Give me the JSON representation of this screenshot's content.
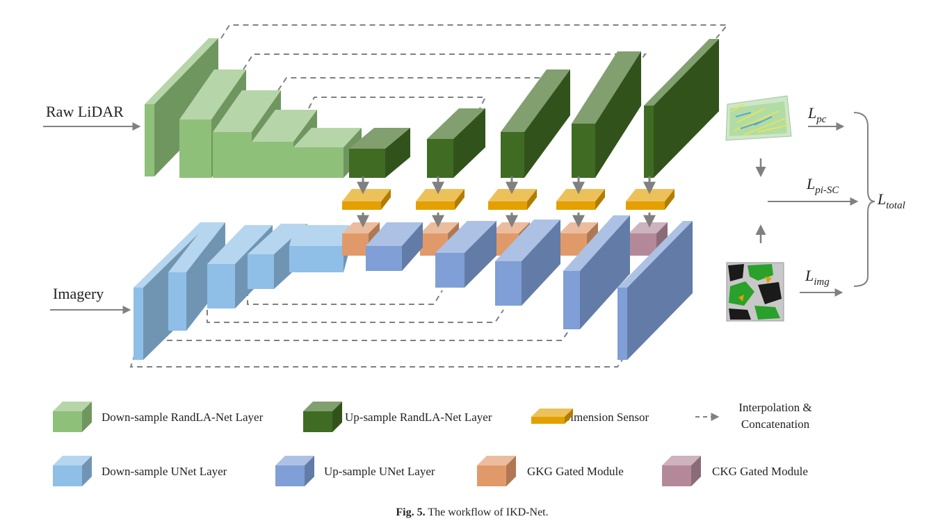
{
  "inputs": {
    "lidar": "Raw LiDAR",
    "imagery": "Imagery"
  },
  "losses": {
    "pc": {
      "main": "L",
      "sub": "pc"
    },
    "pisc": {
      "main": "L",
      "sub": "pi-SC"
    },
    "img": {
      "main": "L",
      "sub": "img"
    },
    "total": {
      "main": "L",
      "sub": "total"
    }
  },
  "legend": {
    "down_randla": "Down-sample RandLA-Net Layer",
    "up_randla": "Up-sample RandLA-Net Layer",
    "dim_sensor": "Dimension Sensor",
    "interp_line1": "Interpolation &",
    "interp_line2": "Concatenation",
    "down_unet": "Down-sample UNet Layer",
    "up_unet": "Up-sample UNet Layer",
    "gkg": "GKG Gated Module",
    "ckg": "CKG Gated Module"
  },
  "caption": {
    "prefix": "Fig. 5.",
    "text": "The workflow of IKD-Net."
  },
  "colors": {
    "down_randla": "#8fc07a",
    "up_randla": "#3f6b23",
    "dim_sensor": "#e3a000",
    "down_unet": "#8fbfe6",
    "up_unet": "#7f9fd6",
    "gkg": "#e09a6a",
    "ckg": "#b3899a",
    "arrow": "#808080",
    "dashed": "#808080"
  }
}
